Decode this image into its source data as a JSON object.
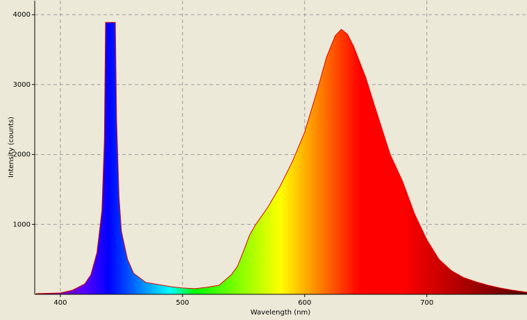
{
  "chart_data": {
    "type": "area",
    "xlabel": "Wavelength (nm)",
    "ylabel": "Intensity (counts)",
    "x": [
      380,
      400,
      410,
      420,
      425,
      430,
      434,
      436,
      437,
      445,
      446,
      448,
      450,
      455,
      460,
      470,
      480,
      490,
      500,
      510,
      520,
      530,
      540,
      545,
      550,
      555,
      560,
      570,
      580,
      590,
      600,
      610,
      618,
      625,
      630,
      635,
      640,
      650,
      657,
      670,
      680,
      690,
      700,
      710,
      720,
      730,
      740,
      750,
      760,
      770,
      782
    ],
    "values": [
      10,
      20,
      60,
      150,
      280,
      600,
      1200,
      2200,
      3890,
      3890,
      2500,
      1400,
      900,
      500,
      300,
      170,
      140,
      110,
      90,
      80,
      100,
      130,
      280,
      400,
      620,
      850,
      1000,
      1250,
      1550,
      1900,
      2320,
      2900,
      3400,
      3700,
      3790,
      3720,
      3550,
      3100,
      2710,
      2000,
      1620,
      1150,
      780,
      500,
      340,
      240,
      180,
      130,
      90,
      60,
      30
    ],
    "line_color": "#e00000",
    "xlim": [
      379,
      782
    ],
    "ylim": [
      0,
      4200
    ],
    "xticks": [
      400,
      500,
      600,
      700
    ],
    "yticks": [
      1000,
      2000,
      3000,
      4000
    ],
    "grid": true
  }
}
